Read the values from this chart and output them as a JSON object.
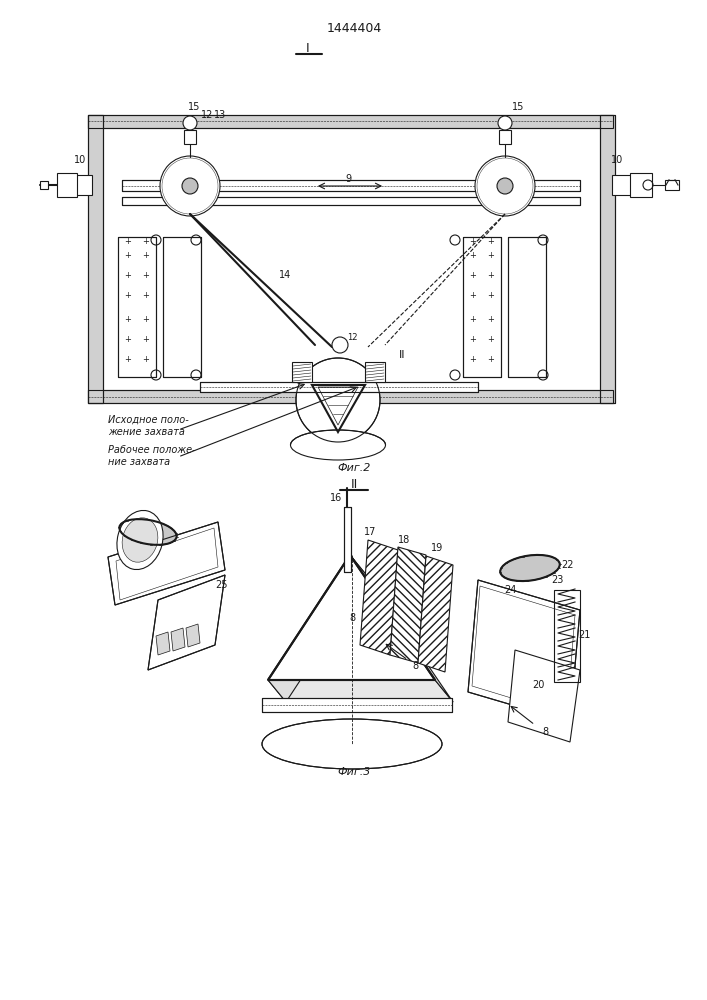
{
  "title": "1444404",
  "fig1_label": "I",
  "fig2_label": "Фиг.2",
  "fig3_label": "Фиг.3",
  "fig3_section": "II",
  "text1": "Исходное поло-\nжение захвата",
  "text2": "Рабочее положе-\nние захвата",
  "bg_color": "#ffffff",
  "line_color": "#1a1a1a",
  "lw": 0.8,
  "lw_thick": 1.5
}
